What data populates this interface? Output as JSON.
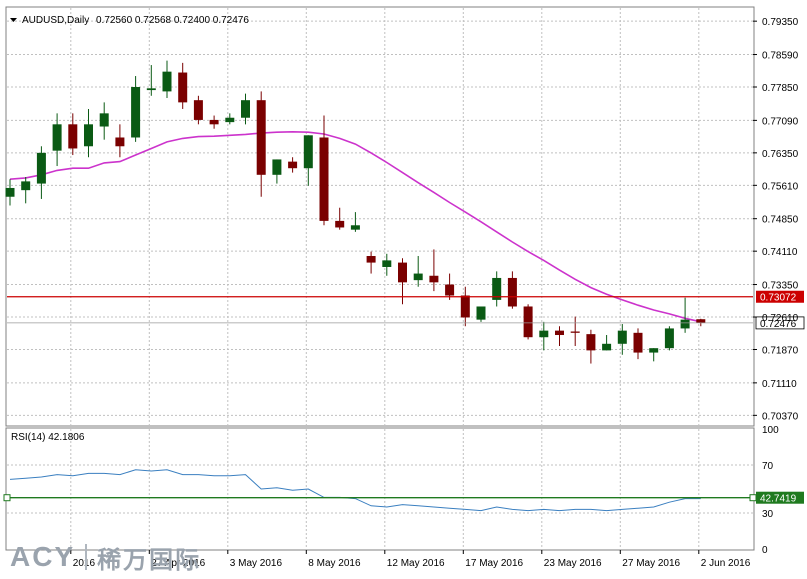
{
  "chart_data": {
    "type": "candlestick",
    "symbol_label": "AUDUSD,Daily",
    "ohlc_label": "0.72560 0.72568 0.72400 0.72476",
    "price_axis_ticks": [
      "0.79350",
      "0.78590",
      "0.77850",
      "0.77090",
      "0.76350",
      "0.75610",
      "0.74850",
      "0.74110",
      "0.73350",
      "0.72610",
      "0.71870",
      "0.71110",
      "0.70370"
    ],
    "ylim": [
      0.7015,
      0.7965
    ],
    "hline_level": 0.73072,
    "hline_label": "0.73072",
    "current_price_label": "0.72476",
    "current_price": 0.72476,
    "date_labels": [
      "2016",
      "27 Apr 2016",
      "3 May 2016",
      "8 May 2016",
      "12 May 2016",
      "17 May 2016",
      "23 May 2016",
      "27 May 2016",
      "2 Jun 2016"
    ],
    "candles": [
      {
        "o": 0.7535,
        "h": 0.7575,
        "l": 0.7515,
        "c": 0.7555
      },
      {
        "o": 0.755,
        "h": 0.758,
        "l": 0.752,
        "c": 0.757
      },
      {
        "o": 0.7565,
        "h": 0.765,
        "l": 0.753,
        "c": 0.7635
      },
      {
        "o": 0.764,
        "h": 0.7725,
        "l": 0.7605,
        "c": 0.77
      },
      {
        "o": 0.77,
        "h": 0.7725,
        "l": 0.763,
        "c": 0.7645
      },
      {
        "o": 0.765,
        "h": 0.7735,
        "l": 0.7625,
        "c": 0.77
      },
      {
        "o": 0.7695,
        "h": 0.775,
        "l": 0.7665,
        "c": 0.7725
      },
      {
        "o": 0.767,
        "h": 0.77,
        "l": 0.7625,
        "c": 0.765
      },
      {
        "o": 0.767,
        "h": 0.781,
        "l": 0.766,
        "c": 0.7785
      },
      {
        "o": 0.7778,
        "h": 0.7835,
        "l": 0.7765,
        "c": 0.7782
      },
      {
        "o": 0.7775,
        "h": 0.7845,
        "l": 0.776,
        "c": 0.782
      },
      {
        "o": 0.7818,
        "h": 0.784,
        "l": 0.7735,
        "c": 0.775
      },
      {
        "o": 0.7755,
        "h": 0.7765,
        "l": 0.77,
        "c": 0.771
      },
      {
        "o": 0.771,
        "h": 0.772,
        "l": 0.769,
        "c": 0.77
      },
      {
        "o": 0.7705,
        "h": 0.7725,
        "l": 0.77,
        "c": 0.7715
      },
      {
        "o": 0.7715,
        "h": 0.777,
        "l": 0.77,
        "c": 0.7755
      },
      {
        "o": 0.7755,
        "h": 0.7775,
        "l": 0.7535,
        "c": 0.7585
      },
      {
        "o": 0.7585,
        "h": 0.762,
        "l": 0.7565,
        "c": 0.762
      },
      {
        "o": 0.7615,
        "h": 0.7625,
        "l": 0.759,
        "c": 0.76
      },
      {
        "o": 0.76,
        "h": 0.7675,
        "l": 0.756,
        "c": 0.7675
      },
      {
        "o": 0.767,
        "h": 0.772,
        "l": 0.747,
        "c": 0.748
      },
      {
        "o": 0.748,
        "h": 0.751,
        "l": 0.746,
        "c": 0.7465
      },
      {
        "o": 0.746,
        "h": 0.75,
        "l": 0.7455,
        "c": 0.747
      },
      {
        "o": 0.74,
        "h": 0.741,
        "l": 0.736,
        "c": 0.7385
      },
      {
        "o": 0.7375,
        "h": 0.7405,
        "l": 0.7355,
        "c": 0.739
      },
      {
        "o": 0.7385,
        "h": 0.7395,
        "l": 0.729,
        "c": 0.734
      },
      {
        "o": 0.7345,
        "h": 0.74,
        "l": 0.733,
        "c": 0.736
      },
      {
        "o": 0.7355,
        "h": 0.7415,
        "l": 0.732,
        "c": 0.734
      },
      {
        "o": 0.7335,
        "h": 0.736,
        "l": 0.73,
        "c": 0.731
      },
      {
        "o": 0.731,
        "h": 0.733,
        "l": 0.724,
        "c": 0.726
      },
      {
        "o": 0.7255,
        "h": 0.7285,
        "l": 0.725,
        "c": 0.7285
      },
      {
        "o": 0.73,
        "h": 0.7365,
        "l": 0.7285,
        "c": 0.735
      },
      {
        "o": 0.735,
        "h": 0.7365,
        "l": 0.728,
        "c": 0.7285
      },
      {
        "o": 0.7285,
        "h": 0.729,
        "l": 0.721,
        "c": 0.7215
      },
      {
        "o": 0.7215,
        "h": 0.725,
        "l": 0.7185,
        "c": 0.723
      },
      {
        "o": 0.723,
        "h": 0.724,
        "l": 0.7195,
        "c": 0.722
      },
      {
        "o": 0.7228,
        "h": 0.7262,
        "l": 0.7195,
        "c": 0.7225
      },
      {
        "o": 0.7222,
        "h": 0.7232,
        "l": 0.7155,
        "c": 0.7185
      },
      {
        "o": 0.7185,
        "h": 0.722,
        "l": 0.7185,
        "c": 0.72
      },
      {
        "o": 0.72,
        "h": 0.7245,
        "l": 0.7175,
        "c": 0.723
      },
      {
        "o": 0.7225,
        "h": 0.7235,
        "l": 0.7165,
        "c": 0.718
      },
      {
        "o": 0.718,
        "h": 0.719,
        "l": 0.716,
        "c": 0.719
      },
      {
        "o": 0.719,
        "h": 0.724,
        "l": 0.7185,
        "c": 0.7235
      },
      {
        "o": 0.7235,
        "h": 0.7305,
        "l": 0.7225,
        "c": 0.7255
      },
      {
        "o": 0.7256,
        "h": 0.7257,
        "l": 0.724,
        "c": 0.7248
      }
    ],
    "ma_series": [
      0.7575,
      0.7578,
      0.7585,
      0.7595,
      0.76,
      0.76,
      0.7612,
      0.7615,
      0.763,
      0.7645,
      0.766,
      0.7668,
      0.7672,
      0.7673,
      0.7675,
      0.7677,
      0.768,
      0.7682,
      0.7683,
      0.7682,
      0.7678,
      0.7668,
      0.7655,
      0.7635,
      0.7613,
      0.759,
      0.7567,
      0.7545,
      0.7522,
      0.75,
      0.7478,
      0.7455,
      0.7432,
      0.741,
      0.739,
      0.7368,
      0.7347,
      0.7328,
      0.7313,
      0.73,
      0.7288,
      0.7277,
      0.7268,
      0.7258,
      0.725
    ],
    "rsi_label": "RSI(14) 42.1806",
    "rsi_value_label": "42.7419",
    "rsi_level": 42.7419,
    "rsi_ticks": [
      "100",
      "70",
      "30",
      "0"
    ],
    "rsi_ylim": [
      0,
      100
    ],
    "rsi_series": [
      58,
      59,
      60,
      62,
      61,
      63,
      63,
      62,
      66,
      65,
      66,
      62,
      62,
      61,
      61,
      62,
      50,
      51,
      49,
      50,
      43,
      43,
      42,
      36,
      35,
      37,
      36,
      35,
      34,
      33,
      32,
      35,
      33,
      32,
      33,
      32,
      33,
      33,
      32,
      33,
      34,
      35,
      39,
      42,
      42
    ],
    "logo_text": {
      "latin": "ACY",
      "cjk": "稀万国际"
    },
    "colors": {
      "bull": "#0a5a14",
      "bear": "#7a0000",
      "ma": "#cc33cc",
      "hline": "#cc0000",
      "rsi": "#3a7fc0",
      "rsi_level": "#1f7a1f",
      "grid": "#c0c0c0",
      "axis_text": "#000000"
    }
  }
}
